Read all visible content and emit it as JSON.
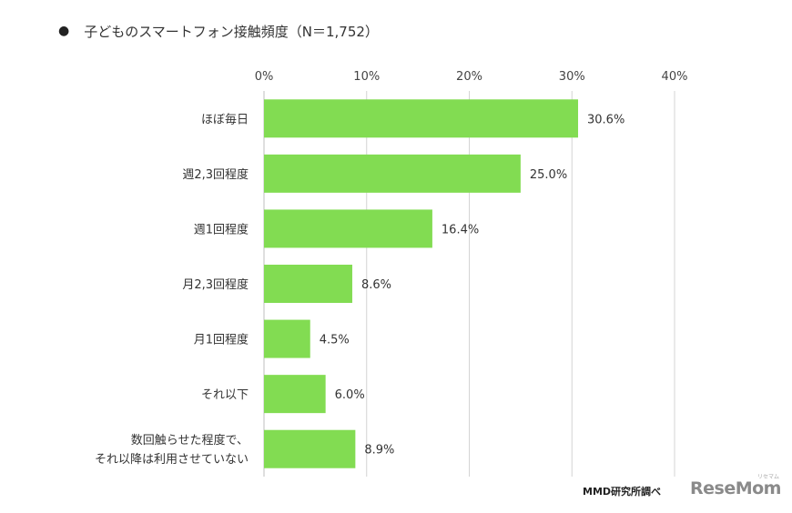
{
  "title": {
    "bullet": "●",
    "text": "子どものスマートフォン接触頻度（N＝1,752）"
  },
  "chart_data": {
    "type": "bar",
    "orientation": "horizontal",
    "title": "子どものスマートフォン接触頻度（N＝1,752）",
    "categories": [
      [
        "ほぼ毎日"
      ],
      [
        "週2,3回程度"
      ],
      [
        "週1回程度"
      ],
      [
        "月2,3回程度"
      ],
      [
        "月1回程度"
      ],
      [
        "それ以下"
      ],
      [
        "数回触らせた程度で、",
        "それ以降は利用させていない"
      ]
    ],
    "values": [
      30.6,
      25.0,
      16.4,
      8.6,
      4.5,
      6.0,
      8.9
    ],
    "value_labels": [
      "30.6%",
      "25.0%",
      "16.4%",
      "8.6%",
      "4.5%",
      "6.0%",
      "8.9%"
    ],
    "xlim": [
      0,
      40
    ],
    "xticks": [
      0,
      10,
      20,
      30,
      40
    ],
    "xtick_labels": [
      "0%",
      "10%",
      "20%",
      "30%",
      "40%"
    ],
    "axis_position": "top",
    "grid": true,
    "bar_color": "#82dc52",
    "grid_color": "#d4d4d4"
  },
  "source": "MMD研究所調べ",
  "logo": {
    "main": "ReseMom",
    "small": "リセマム"
  }
}
